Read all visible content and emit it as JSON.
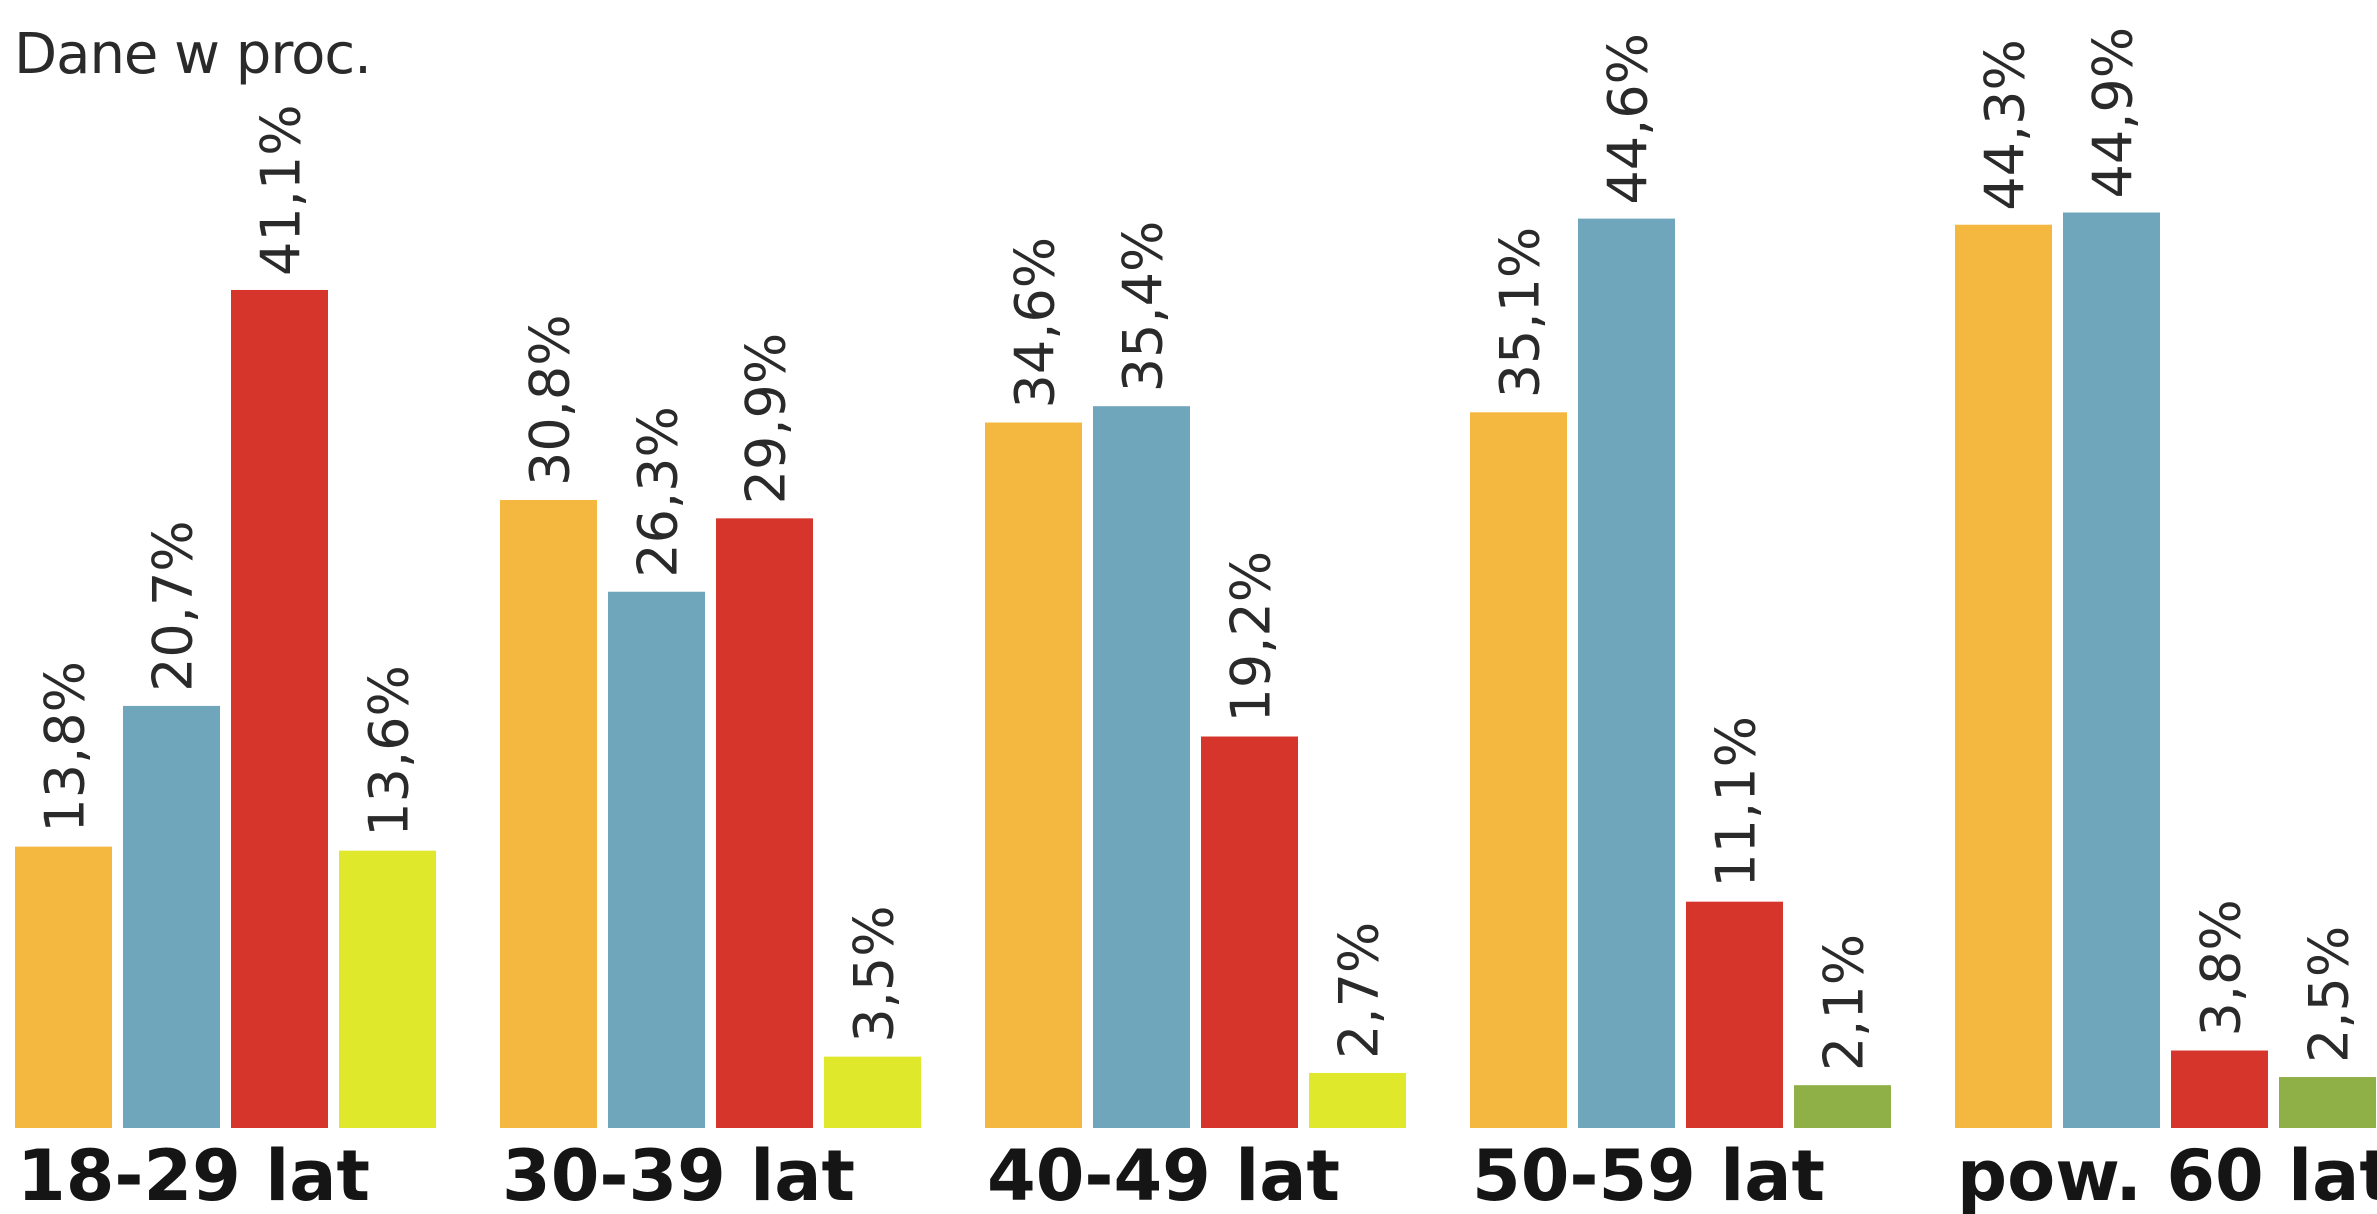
{
  "chart_data": {
    "type": "bar",
    "subtitle": "Dane w proc.",
    "categories": [
      "18-29 lat",
      "30-39 lat",
      "40-49 lat",
      "50-59 lat",
      "pow. 60 lat"
    ],
    "series_colors": [
      "#f4b740",
      "#6fa6bb",
      "#d6352c",
      "#dfe82a"
    ],
    "last_series_alt_color": "#8fb047",
    "values": [
      [
        13.8,
        20.7,
        41.1,
        13.6
      ],
      [
        30.8,
        26.3,
        29.9,
        3.5
      ],
      [
        34.6,
        35.4,
        19.2,
        2.7
      ],
      [
        35.1,
        44.6,
        11.1,
        2.1
      ],
      [
        44.3,
        44.9,
        3.8,
        2.5
      ]
    ],
    "value_labels": [
      [
        "13,8%",
        "20,7%",
        "41,1%",
        "13,6%"
      ],
      [
        "30,8%",
        "26,3%",
        "29,9%",
        "3,5%"
      ],
      [
        "34,6%",
        "35,4%",
        "19,2%",
        "2,7%"
      ],
      [
        "35,1%",
        "44,6%",
        "11,1%",
        "2,1%"
      ],
      [
        "",
        "",
        "3,8%",
        "2,5%"
      ]
    ],
    "value_labels_above_chart": [
      "44,3%",
      "44,9%"
    ],
    "ylim": [
      0,
      45
    ]
  }
}
